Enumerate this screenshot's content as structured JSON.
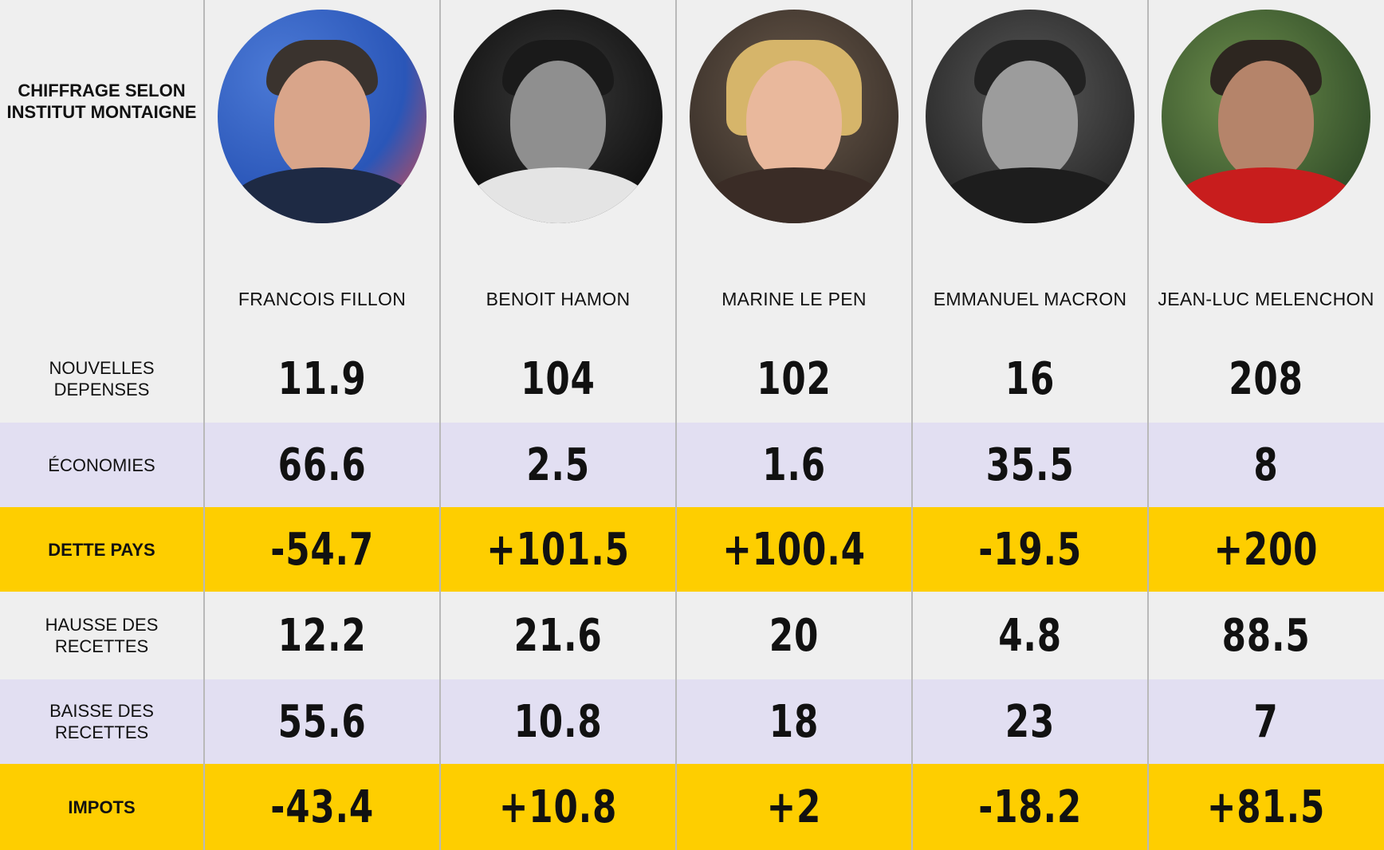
{
  "table": {
    "corner_title": "CHIFFRAGE SELON INSTITUT MONTAIGNE",
    "candidates": [
      {
        "name": "FRANCOIS FILLON",
        "photo": "candidate-portrait"
      },
      {
        "name": "BENOIT HAMON",
        "photo": "candidate-portrait"
      },
      {
        "name": "MARINE LE PEN",
        "photo": "candidate-portrait"
      },
      {
        "name": "EMMANUEL MACRON",
        "photo": "candidate-portrait"
      },
      {
        "name": "JEAN-LUC MELENCHON",
        "photo": "candidate-portrait"
      }
    ],
    "rows": [
      {
        "label": "NOUVELLES DEPENSES",
        "values": [
          "11.9",
          "104",
          "102",
          "16",
          "208"
        ]
      },
      {
        "label": "ÉCONOMIES",
        "values": [
          "66.6",
          "2.5",
          "1.6",
          "35.5",
          "8"
        ]
      },
      {
        "label": "DETTE PAYS",
        "values": [
          "-54.7",
          "+101.5",
          "+100.4",
          "-19.5",
          "+200"
        ]
      },
      {
        "label": "HAUSSE DES RECETTES",
        "values": [
          "12.2",
          "21.6",
          "20",
          "4.8",
          "88.5"
        ]
      },
      {
        "label": "BAISSE DES RECETTES",
        "values": [
          "55.6",
          "10.8",
          "18",
          "23",
          "7"
        ]
      },
      {
        "label": "IMPOTS",
        "values": [
          "-43.4",
          "+10.8",
          "+2",
          "-18.2",
          "+81.5"
        ]
      }
    ]
  },
  "colors": {
    "background": "#efefef",
    "lavender_row": "#e2dff2",
    "highlight_row": "#fece00"
  }
}
